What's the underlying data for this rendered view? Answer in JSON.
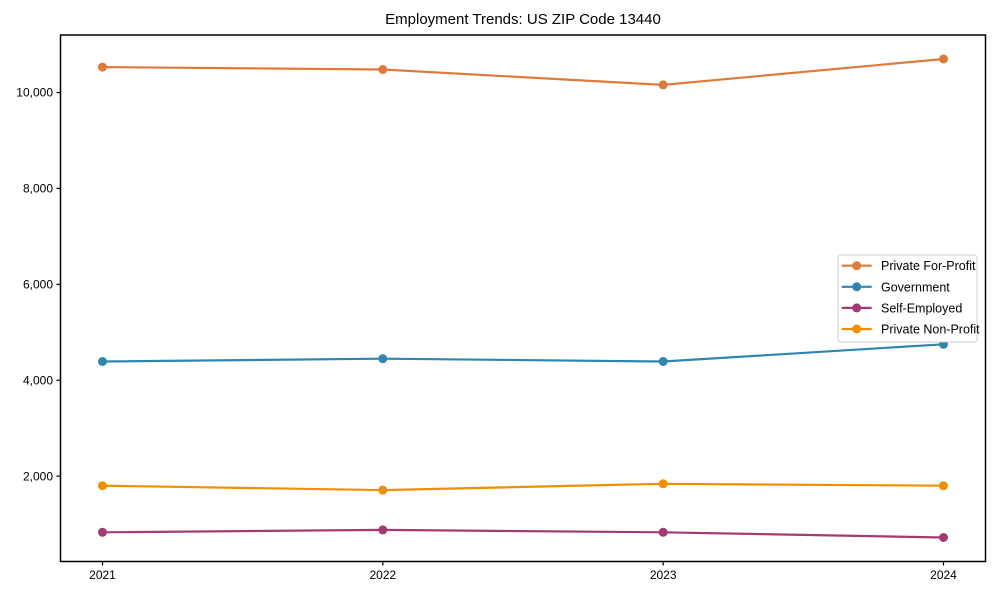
{
  "window": {
    "title": "Employment Trends: US ZIP Code 13440"
  },
  "chart_data": {
    "type": "line",
    "title": "Employment Trends: US ZIP Code 13440",
    "categories": [
      2021,
      2022,
      2023,
      2024
    ],
    "x_tick_labels": [
      "2021",
      "2022",
      "2023",
      "2024"
    ],
    "series": [
      {
        "name": "Private For-Profit",
        "color": "#E0793C",
        "marker": "circle",
        "values": [
          10530,
          10480,
          10160,
          10700
        ]
      },
      {
        "name": "Government",
        "color": "#2E86AB",
        "marker": "circle",
        "values": [
          4390,
          4450,
          4390,
          4750
        ]
      },
      {
        "name": "Self-Employed",
        "color": "#A23B72",
        "marker": "circle",
        "values": [
          830,
          880,
          830,
          720
        ]
      },
      {
        "name": "Private Non-Profit",
        "color": "#F18F01",
        "marker": "circle",
        "values": [
          1800,
          1710,
          1840,
          1800
        ]
      }
    ],
    "xlabel": "",
    "ylabel": "",
    "ylim": [
      220,
      11200
    ],
    "yticks": [
      2000,
      4000,
      6000,
      8000,
      10000
    ],
    "ytick_labels": [
      "2,000",
      "4,000",
      "6,000",
      "8,000",
      "10,000"
    ],
    "grid": false,
    "legend_position": "center-right",
    "axis_color": "#000000",
    "legend_border_color": "#cccccc",
    "background": "#ffffff"
  }
}
